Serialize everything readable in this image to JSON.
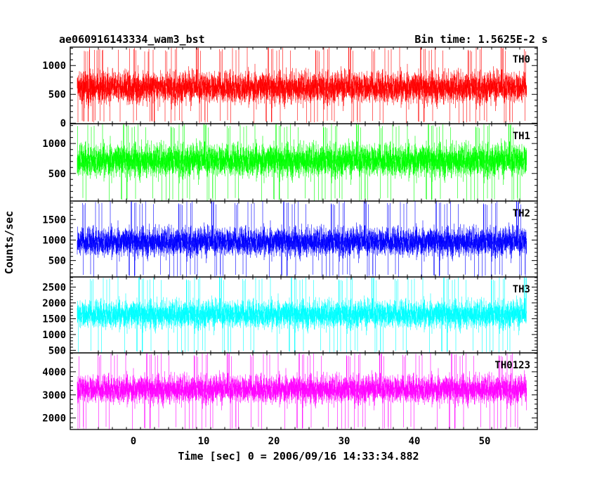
{
  "header": {
    "title": "ae060916143334_wam3_bst",
    "bin_time": "Bin time: 1.5625E-2 s"
  },
  "chart_data": {
    "type": "line",
    "xlabel": "Time [sec] 0 = 2006/09/16 14:33:34.882",
    "ylabel": "Counts/sec",
    "xlim": [
      -9,
      57.5
    ],
    "x_ticks": [
      0,
      10,
      20,
      30,
      40,
      50
    ],
    "data_xrange": [
      -8.0,
      56.0
    ],
    "bin_time_s": 0.015625,
    "grid": false,
    "panels": [
      {
        "name": "TH0",
        "color": "#ff0000",
        "ylim": [
          -10,
          1320
        ],
        "y_ticks": [
          0,
          500,
          1000
        ],
        "base": 620,
        "spread": 260,
        "floor": 0,
        "top": 1320
      },
      {
        "name": "TH1",
        "color": "#00ff00",
        "ylim": [
          40,
          1330
        ],
        "y_ticks": [
          500,
          1000
        ],
        "base": 720,
        "spread": 260,
        "floor": 40,
        "top": 1330
      },
      {
        "name": "TH2",
        "color": "#0000ff",
        "ylim": [
          100,
          1950
        ],
        "y_ticks": [
          500,
          1000,
          1500
        ],
        "base": 960,
        "spread": 330,
        "floor": 100,
        "top": 1950
      },
      {
        "name": "TH3",
        "color": "#00ffff",
        "ylim": [
          420,
          2820
        ],
        "y_ticks": [
          500,
          1000,
          1500,
          2000,
          2500
        ],
        "base": 1640,
        "spread": 420,
        "floor": 420,
        "top": 2820
      },
      {
        "name": "TH0123",
        "color": "#ff00ff",
        "ylim": [
          1500,
          4820
        ],
        "y_ticks": [
          2000,
          3000,
          4000
        ],
        "base": 3250,
        "spread": 580,
        "floor": 1500,
        "top": 4820
      }
    ]
  }
}
